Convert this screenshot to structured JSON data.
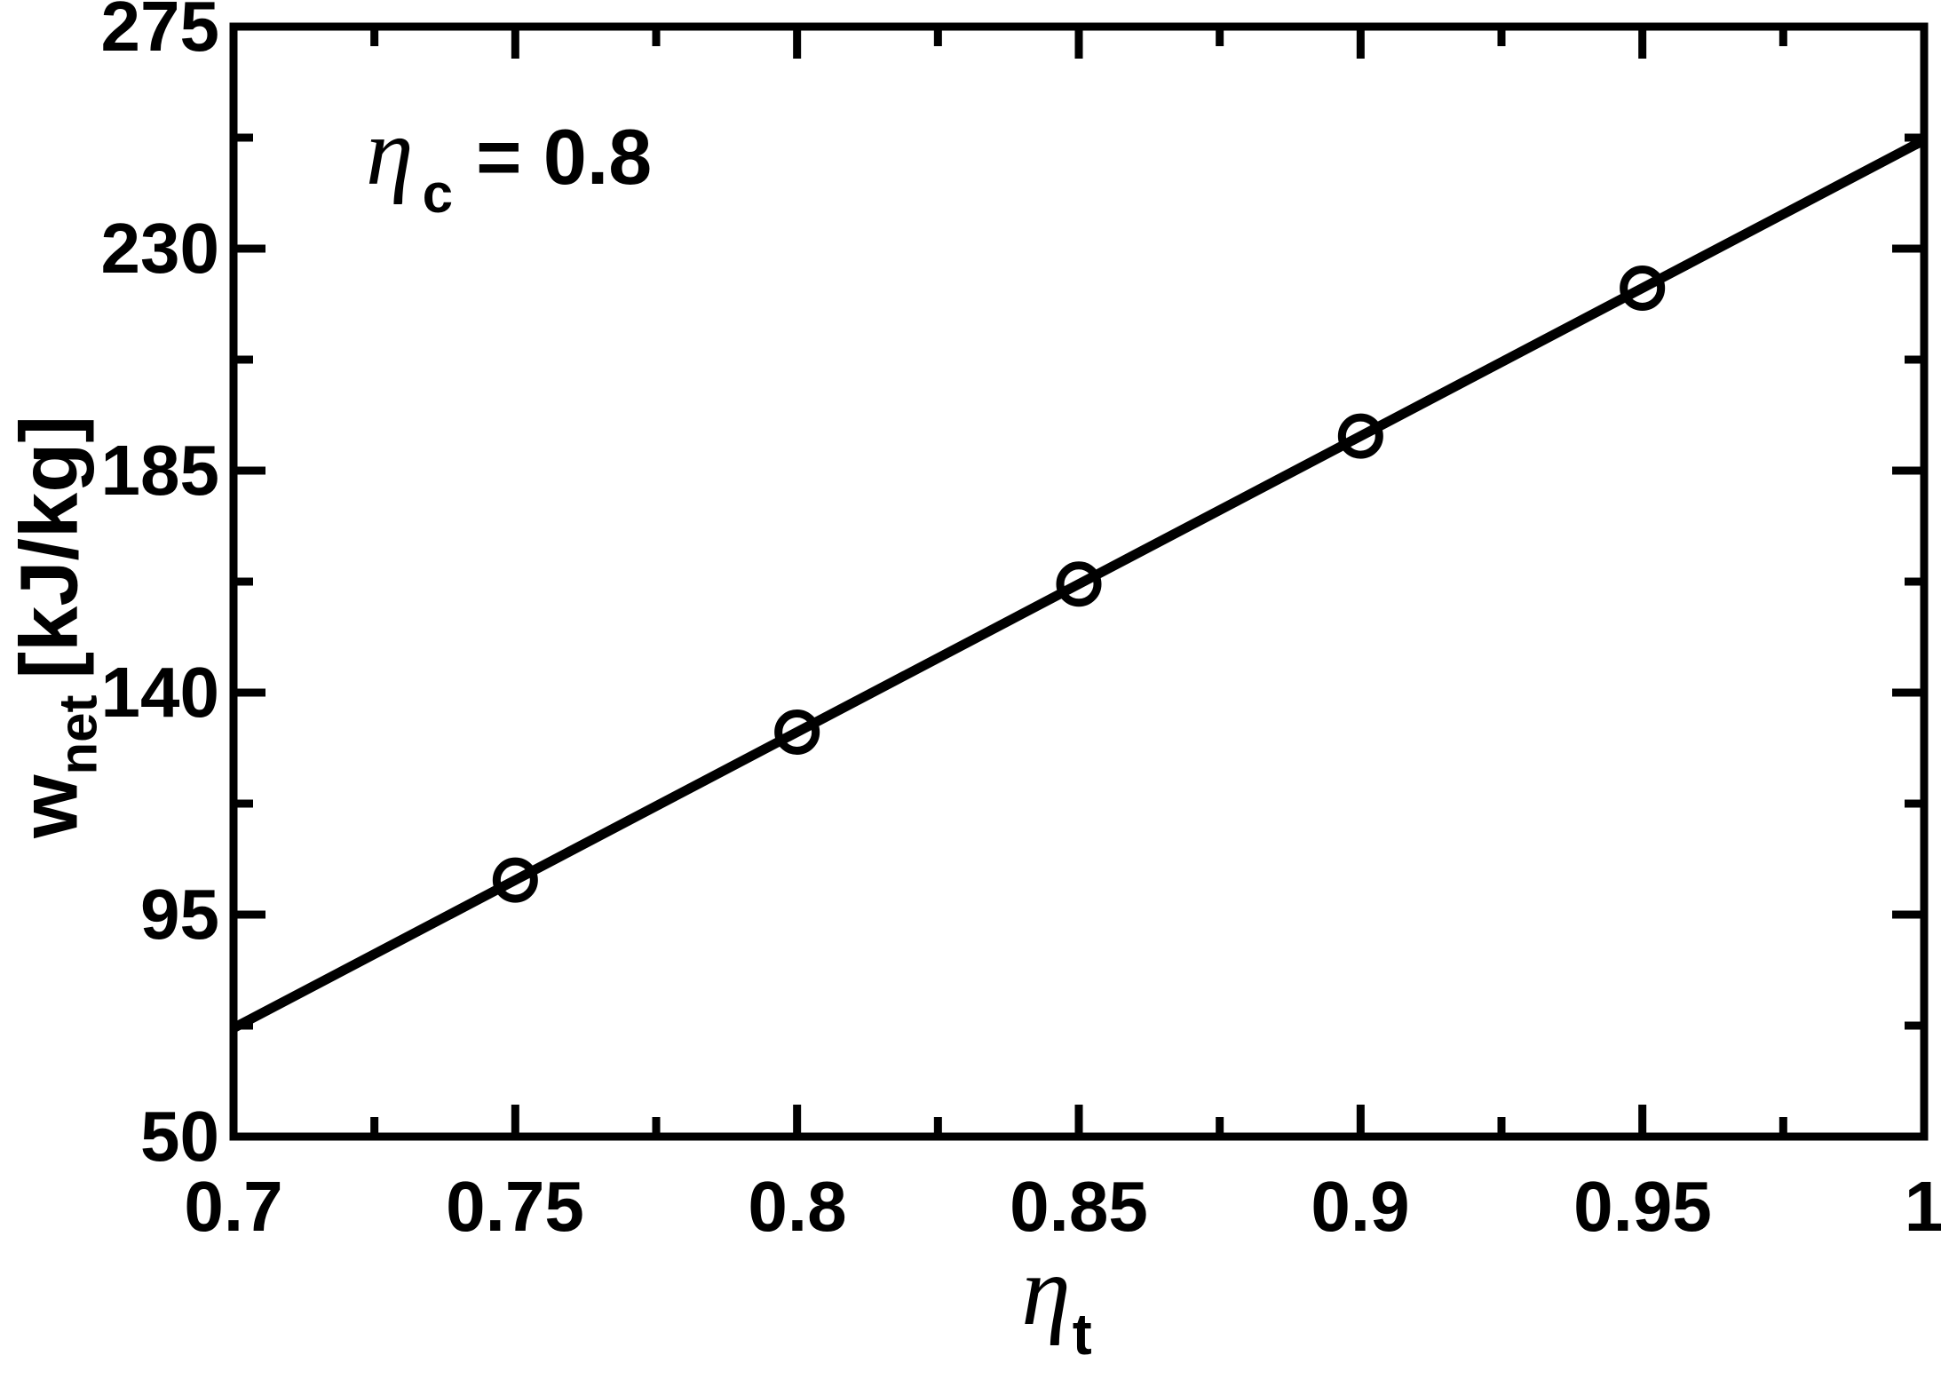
{
  "chart_data": {
    "type": "line",
    "title": "",
    "annotation": {
      "symbol": "η",
      "subscript": "c",
      "rest": "= 0.8"
    },
    "xlabel": {
      "symbol": "η",
      "subscript": "t"
    },
    "ylabel": {
      "main": "w",
      "subscript": "net",
      "units": "[kJ/kg]"
    },
    "xlim": [
      0.7,
      1.0
    ],
    "ylim": [
      50,
      275
    ],
    "grid": false,
    "legend": false,
    "x_major_ticks": [
      0.7,
      0.75,
      0.8,
      0.85,
      0.9,
      0.95,
      1.0
    ],
    "x_tick_labels": [
      "0.7",
      "0.75",
      "0.8",
      "0.85",
      "0.9",
      "0.95",
      "1"
    ],
    "x_minor_tick_step": 0.025,
    "y_major_ticks": [
      275,
      230,
      185,
      140,
      95,
      50
    ],
    "y_tick_labels": [
      "275",
      "230",
      "185",
      "140",
      "95",
      "50"
    ],
    "y_minor_tick_step": 22.5,
    "series": [
      {
        "name": "w_net vs eta_t (eta_c = 0.8)",
        "marker": "open-circle",
        "x": [
          0.75,
          0.8,
          0.85,
          0.9,
          0.95
        ],
        "y": [
          102,
          132,
          162,
          192,
          222
        ],
        "line_x": [
          0.7,
          1.0
        ],
        "line_y": [
          72,
          252
        ]
      }
    ],
    "colors": {
      "stroke": "#000000",
      "background": "#ffffff"
    }
  }
}
